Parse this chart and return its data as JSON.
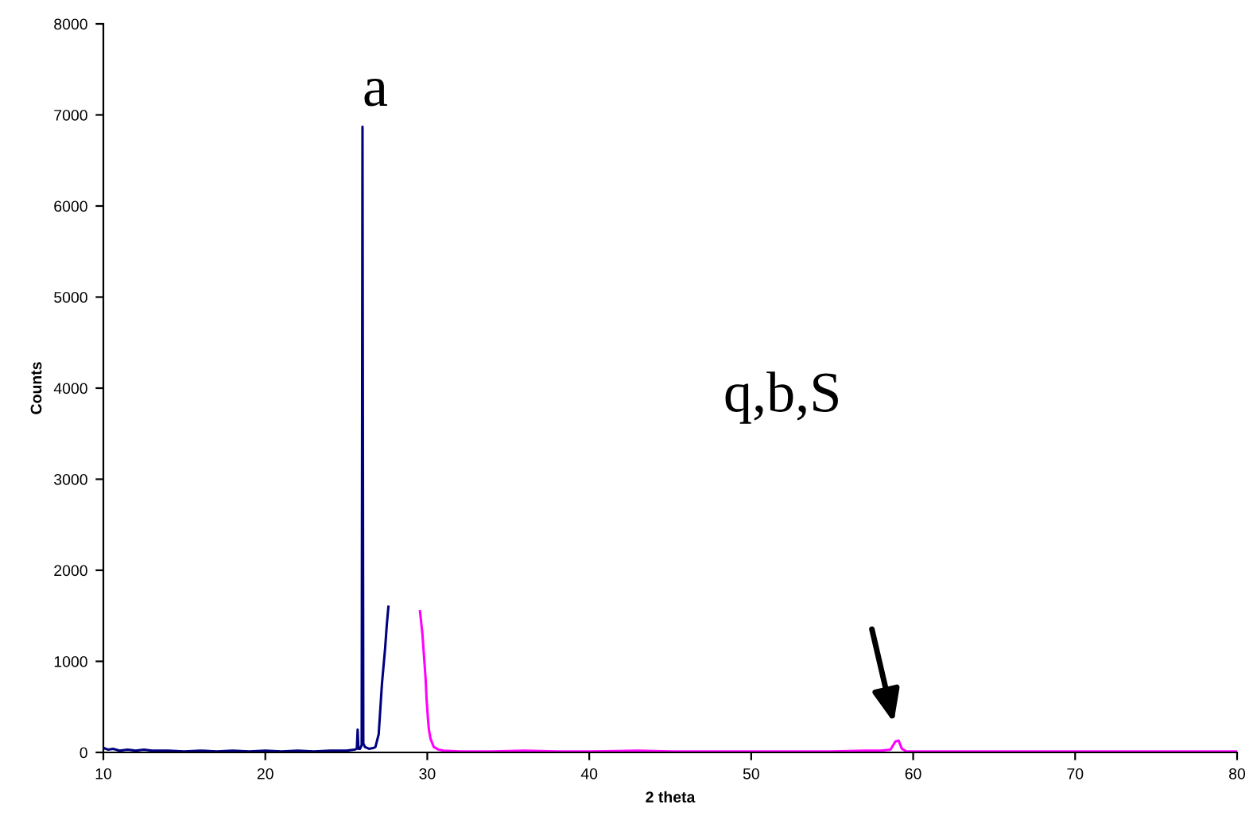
{
  "chart_data": {
    "type": "line",
    "xlabel": "2 theta",
    "ylabel": "Counts",
    "xlim": [
      10,
      80
    ],
    "xticks": [
      10,
      20,
      30,
      40,
      50,
      60,
      70,
      80
    ],
    "ylim": [
      0,
      8000
    ],
    "yticks": [
      0,
      1000,
      2000,
      3000,
      4000,
      5000,
      6000,
      7000,
      8000
    ],
    "grid": false,
    "legend": false,
    "marker": "none",
    "line_style": "solid",
    "series": [
      {
        "color": "#000080",
        "x": [
          10,
          10.3,
          10.6,
          11,
          11.5,
          12,
          12.5,
          13,
          14,
          15,
          16,
          17,
          18,
          19,
          20,
          21,
          22,
          23,
          24,
          25,
          25.5,
          25.65,
          25.7,
          25.75,
          25.85,
          25.95,
          26.0,
          26.05,
          26.15,
          26.4,
          26.7,
          26.8,
          27.0,
          27.2,
          27.3,
          27.4,
          27.5,
          27.6
        ],
        "values": [
          50,
          30,
          40,
          20,
          30,
          20,
          30,
          20,
          20,
          10,
          20,
          10,
          20,
          10,
          20,
          10,
          20,
          10,
          20,
          20,
          30,
          40,
          250,
          40,
          40,
          80,
          6870,
          100,
          60,
          40,
          50,
          60,
          200,
          750,
          950,
          1150,
          1400,
          1600
        ]
      },
      {
        "color": "#ff00ff",
        "x": [
          29.55,
          29.7,
          29.8,
          29.9,
          29.95,
          30.05,
          30.1,
          30.2,
          30.4,
          30.7,
          31,
          32,
          34,
          36,
          38,
          40,
          43,
          45,
          50,
          55,
          57,
          58,
          58.6,
          58.9,
          59.1,
          59.3,
          59.6,
          60,
          62,
          65,
          70,
          75,
          80
        ],
        "values": [
          1550,
          1300,
          1050,
          800,
          600,
          350,
          250,
          150,
          60,
          30,
          20,
          10,
          10,
          20,
          10,
          10,
          20,
          10,
          10,
          10,
          20,
          20,
          30,
          120,
          130,
          40,
          10,
          10,
          10,
          10,
          10,
          10,
          10
        ]
      }
    ],
    "annotations": [
      {
        "text": "a",
        "x": 26.0,
        "y": 6870
      },
      "q,b,S"
    ]
  }
}
